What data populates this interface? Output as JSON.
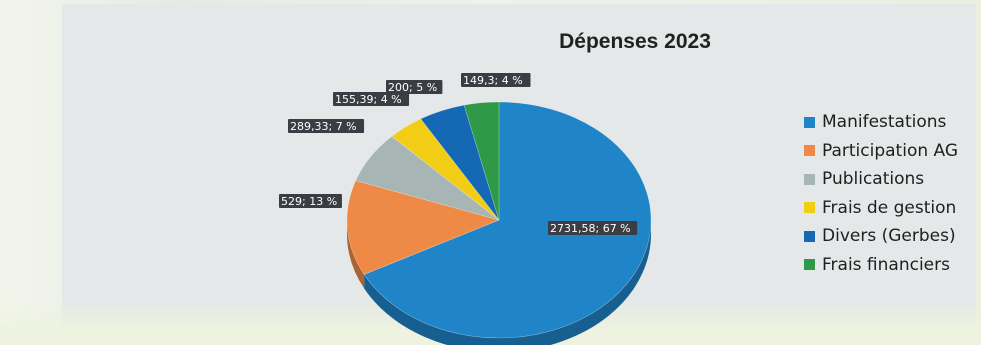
{
  "chart_data": {
    "type": "pie",
    "title": "Dépenses 2023",
    "categories": [
      "Manifestations",
      "Participation AG",
      "Publications",
      "Frais de gestion",
      "Divers (Gerbes)",
      "Frais financiers"
    ],
    "values": [
      2731.58,
      529,
      289.33,
      155.39,
      200,
      149.3
    ],
    "percent": [
      67,
      13,
      7,
      4,
      5,
      4
    ],
    "data_labels": [
      "2731,58; 67 %",
      "529; 13 %",
      "289,33; 7 %",
      "155,39; 4 %",
      "200; 5 %",
      "149,3; 4 %"
    ],
    "colors": [
      "#1f84c8",
      "#ee8a45",
      "#a8b5b5",
      "#f2cd16",
      "#1468b4",
      "#2e9947"
    ],
    "legend_position": "right",
    "3d": true
  }
}
